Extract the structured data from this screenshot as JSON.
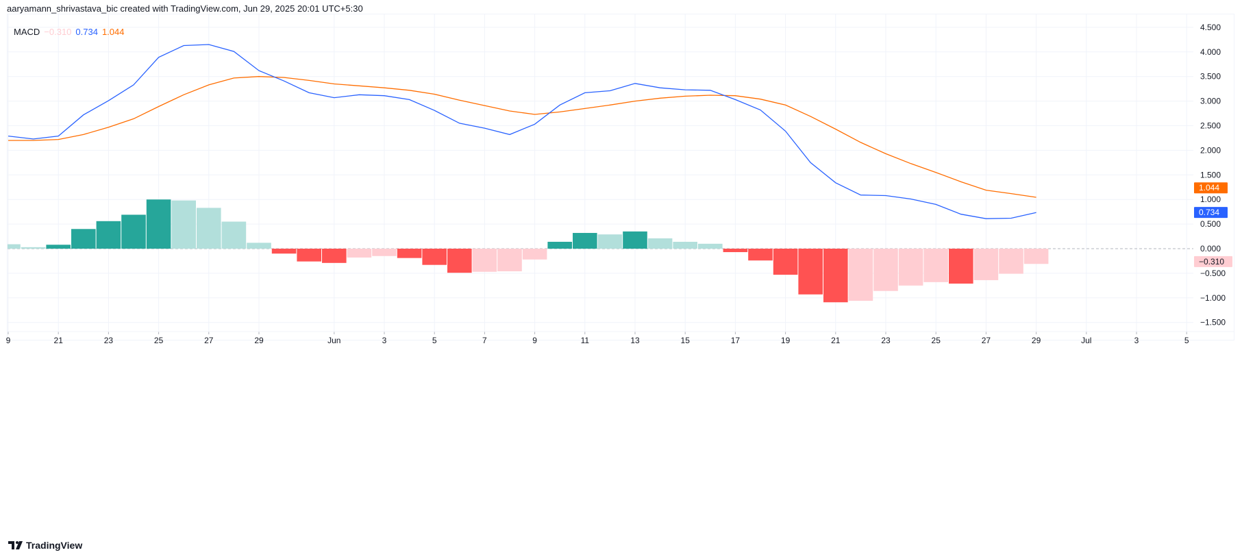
{
  "header": {
    "title": "aaryamann_shrivastava_bic created with TradingView.com, Jun 29, 2025 20:01 UTC+5:30"
  },
  "legend": {
    "name": "MACD",
    "hist": "−0.310",
    "macd": "0.734",
    "signal": "1.044"
  },
  "colors": {
    "macd": "#2962ff",
    "signal": "#ff6d00",
    "hist_up_strong": "#26a69a",
    "hist_up_weak": "#b2dfdb",
    "hist_down_strong": "#ff5252",
    "hist_down_weak": "#ffcdd2"
  },
  "footer": {
    "brand": "TradingView"
  },
  "chart_data": {
    "type": "line+bar",
    "title": "",
    "dates": [
      "May 19",
      "May 20",
      "May 21",
      "May 22",
      "May 23",
      "May 24",
      "May 25",
      "May 26",
      "May 27",
      "May 28",
      "May 29",
      "May 30",
      "May 31",
      "Jun 1",
      "Jun 2",
      "Jun 3",
      "Jun 4",
      "Jun 5",
      "Jun 6",
      "Jun 7",
      "Jun 8",
      "Jun 9",
      "Jun 10",
      "Jun 11",
      "Jun 12",
      "Jun 13",
      "Jun 14",
      "Jun 15",
      "Jun 16",
      "Jun 17",
      "Jun 18",
      "Jun 19",
      "Jun 20",
      "Jun 21",
      "Jun 22",
      "Jun 23",
      "Jun 24",
      "Jun 25",
      "Jun 26",
      "Jun 27",
      "Jun 28",
      "Jun 29"
    ],
    "series": [
      {
        "key": "macd",
        "values": [
          2.29,
          2.23,
          2.29,
          2.72,
          3.01,
          3.33,
          3.89,
          4.13,
          4.15,
          4.01,
          3.62,
          3.41,
          3.17,
          3.07,
          3.13,
          3.11,
          3.03,
          2.81,
          2.55,
          2.45,
          2.32,
          2.53,
          2.92,
          3.17,
          3.21,
          3.36,
          3.27,
          3.23,
          3.22,
          3.03,
          2.82,
          2.39,
          1.75,
          1.34,
          1.09,
          1.08,
          1.01,
          0.9,
          0.7,
          0.61,
          0.62,
          0.734
        ]
      },
      {
        "key": "signal",
        "values": [
          2.2,
          2.2,
          2.22,
          2.32,
          2.47,
          2.64,
          2.89,
          3.13,
          3.33,
          3.47,
          3.5,
          3.48,
          3.42,
          3.35,
          3.31,
          3.27,
          3.22,
          3.14,
          3.02,
          2.91,
          2.8,
          2.73,
          2.78,
          2.85,
          2.92,
          3.0,
          3.06,
          3.1,
          3.12,
          3.11,
          3.04,
          2.92,
          2.69,
          2.43,
          2.16,
          1.93,
          1.73,
          1.55,
          1.36,
          1.19,
          1.12,
          1.044
        ]
      },
      {
        "key": "histogram",
        "values": [
          0.09,
          0.03,
          0.08,
          0.4,
          0.56,
          0.69,
          1.0,
          0.98,
          0.83,
          0.55,
          0.12,
          -0.1,
          -0.26,
          -0.29,
          -0.18,
          -0.15,
          -0.19,
          -0.33,
          -0.49,
          -0.47,
          -0.46,
          -0.22,
          0.14,
          0.32,
          0.29,
          0.35,
          0.21,
          0.14,
          0.1,
          -0.07,
          -0.24,
          -0.53,
          -0.93,
          -1.09,
          -1.06,
          -0.86,
          -0.75,
          -0.68,
          -0.71,
          -0.64,
          -0.51,
          -0.31
        ]
      }
    ],
    "x_ticks": [
      {
        "label": "9",
        "day": 0
      },
      {
        "label": "21",
        "day": 2
      },
      {
        "label": "23",
        "day": 4
      },
      {
        "label": "25",
        "day": 6
      },
      {
        "label": "27",
        "day": 8
      },
      {
        "label": "29",
        "day": 10
      },
      {
        "label": "Jun",
        "day": 13
      },
      {
        "label": "3",
        "day": 15
      },
      {
        "label": "5",
        "day": 17
      },
      {
        "label": "7",
        "day": 19
      },
      {
        "label": "9",
        "day": 21
      },
      {
        "label": "11",
        "day": 23
      },
      {
        "label": "13",
        "day": 25
      },
      {
        "label": "15",
        "day": 27
      },
      {
        "label": "17",
        "day": 29
      },
      {
        "label": "19",
        "day": 31
      },
      {
        "label": "21",
        "day": 33
      },
      {
        "label": "23",
        "day": 35
      },
      {
        "label": "25",
        "day": 37
      },
      {
        "label": "27",
        "day": 39
      },
      {
        "label": "29",
        "day": 41
      },
      {
        "label": "Jul",
        "day": 43
      },
      {
        "label": "3",
        "day": 45
      },
      {
        "label": "5",
        "day": 47
      }
    ],
    "y_ticks": [
      "4.500",
      "4.000",
      "3.500",
      "3.000",
      "2.500",
      "2.000",
      "1.500",
      "1.000",
      "0.500",
      "0.000",
      "−0.500",
      "−1.000",
      "−1.500"
    ],
    "ylim": [
      -1.5,
      4.5
    ],
    "last_values": [
      {
        "label": "1.044",
        "value": 1.044,
        "key": "signal"
      },
      {
        "label": "0.734",
        "value": 0.734,
        "key": "macd"
      },
      {
        "label": "−0.310",
        "value": -0.31,
        "key": "histogram"
      }
    ],
    "grid": true,
    "zero_line": "dashed"
  }
}
